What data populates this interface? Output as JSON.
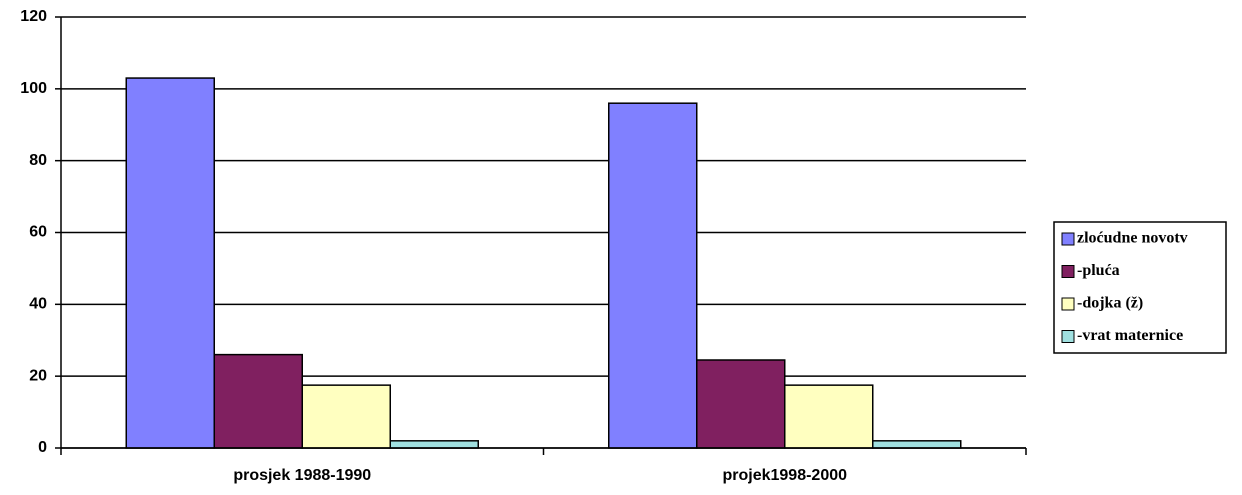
{
  "chart_data": {
    "type": "bar",
    "categories": [
      "prosjek 1988-1990",
      "projek1998-2000"
    ],
    "series": [
      {
        "name": "zloćudne novotv",
        "color": "#8080ff",
        "values": [
          103,
          96
        ]
      },
      {
        "name": "-pluća",
        "color": "#802060",
        "values": [
          26,
          24.5
        ]
      },
      {
        "name": "-dojka (ž)",
        "color": "#ffffc0",
        "values": [
          17.5,
          17.5
        ]
      },
      {
        "name": "-vrat maternice",
        "color": "#a0e0e0",
        "values": [
          2,
          2
        ]
      }
    ],
    "ylim": [
      0,
      120
    ],
    "yticks": [
      0,
      20,
      40,
      60,
      80,
      100,
      120
    ],
    "grid": true,
    "legend": "right"
  }
}
